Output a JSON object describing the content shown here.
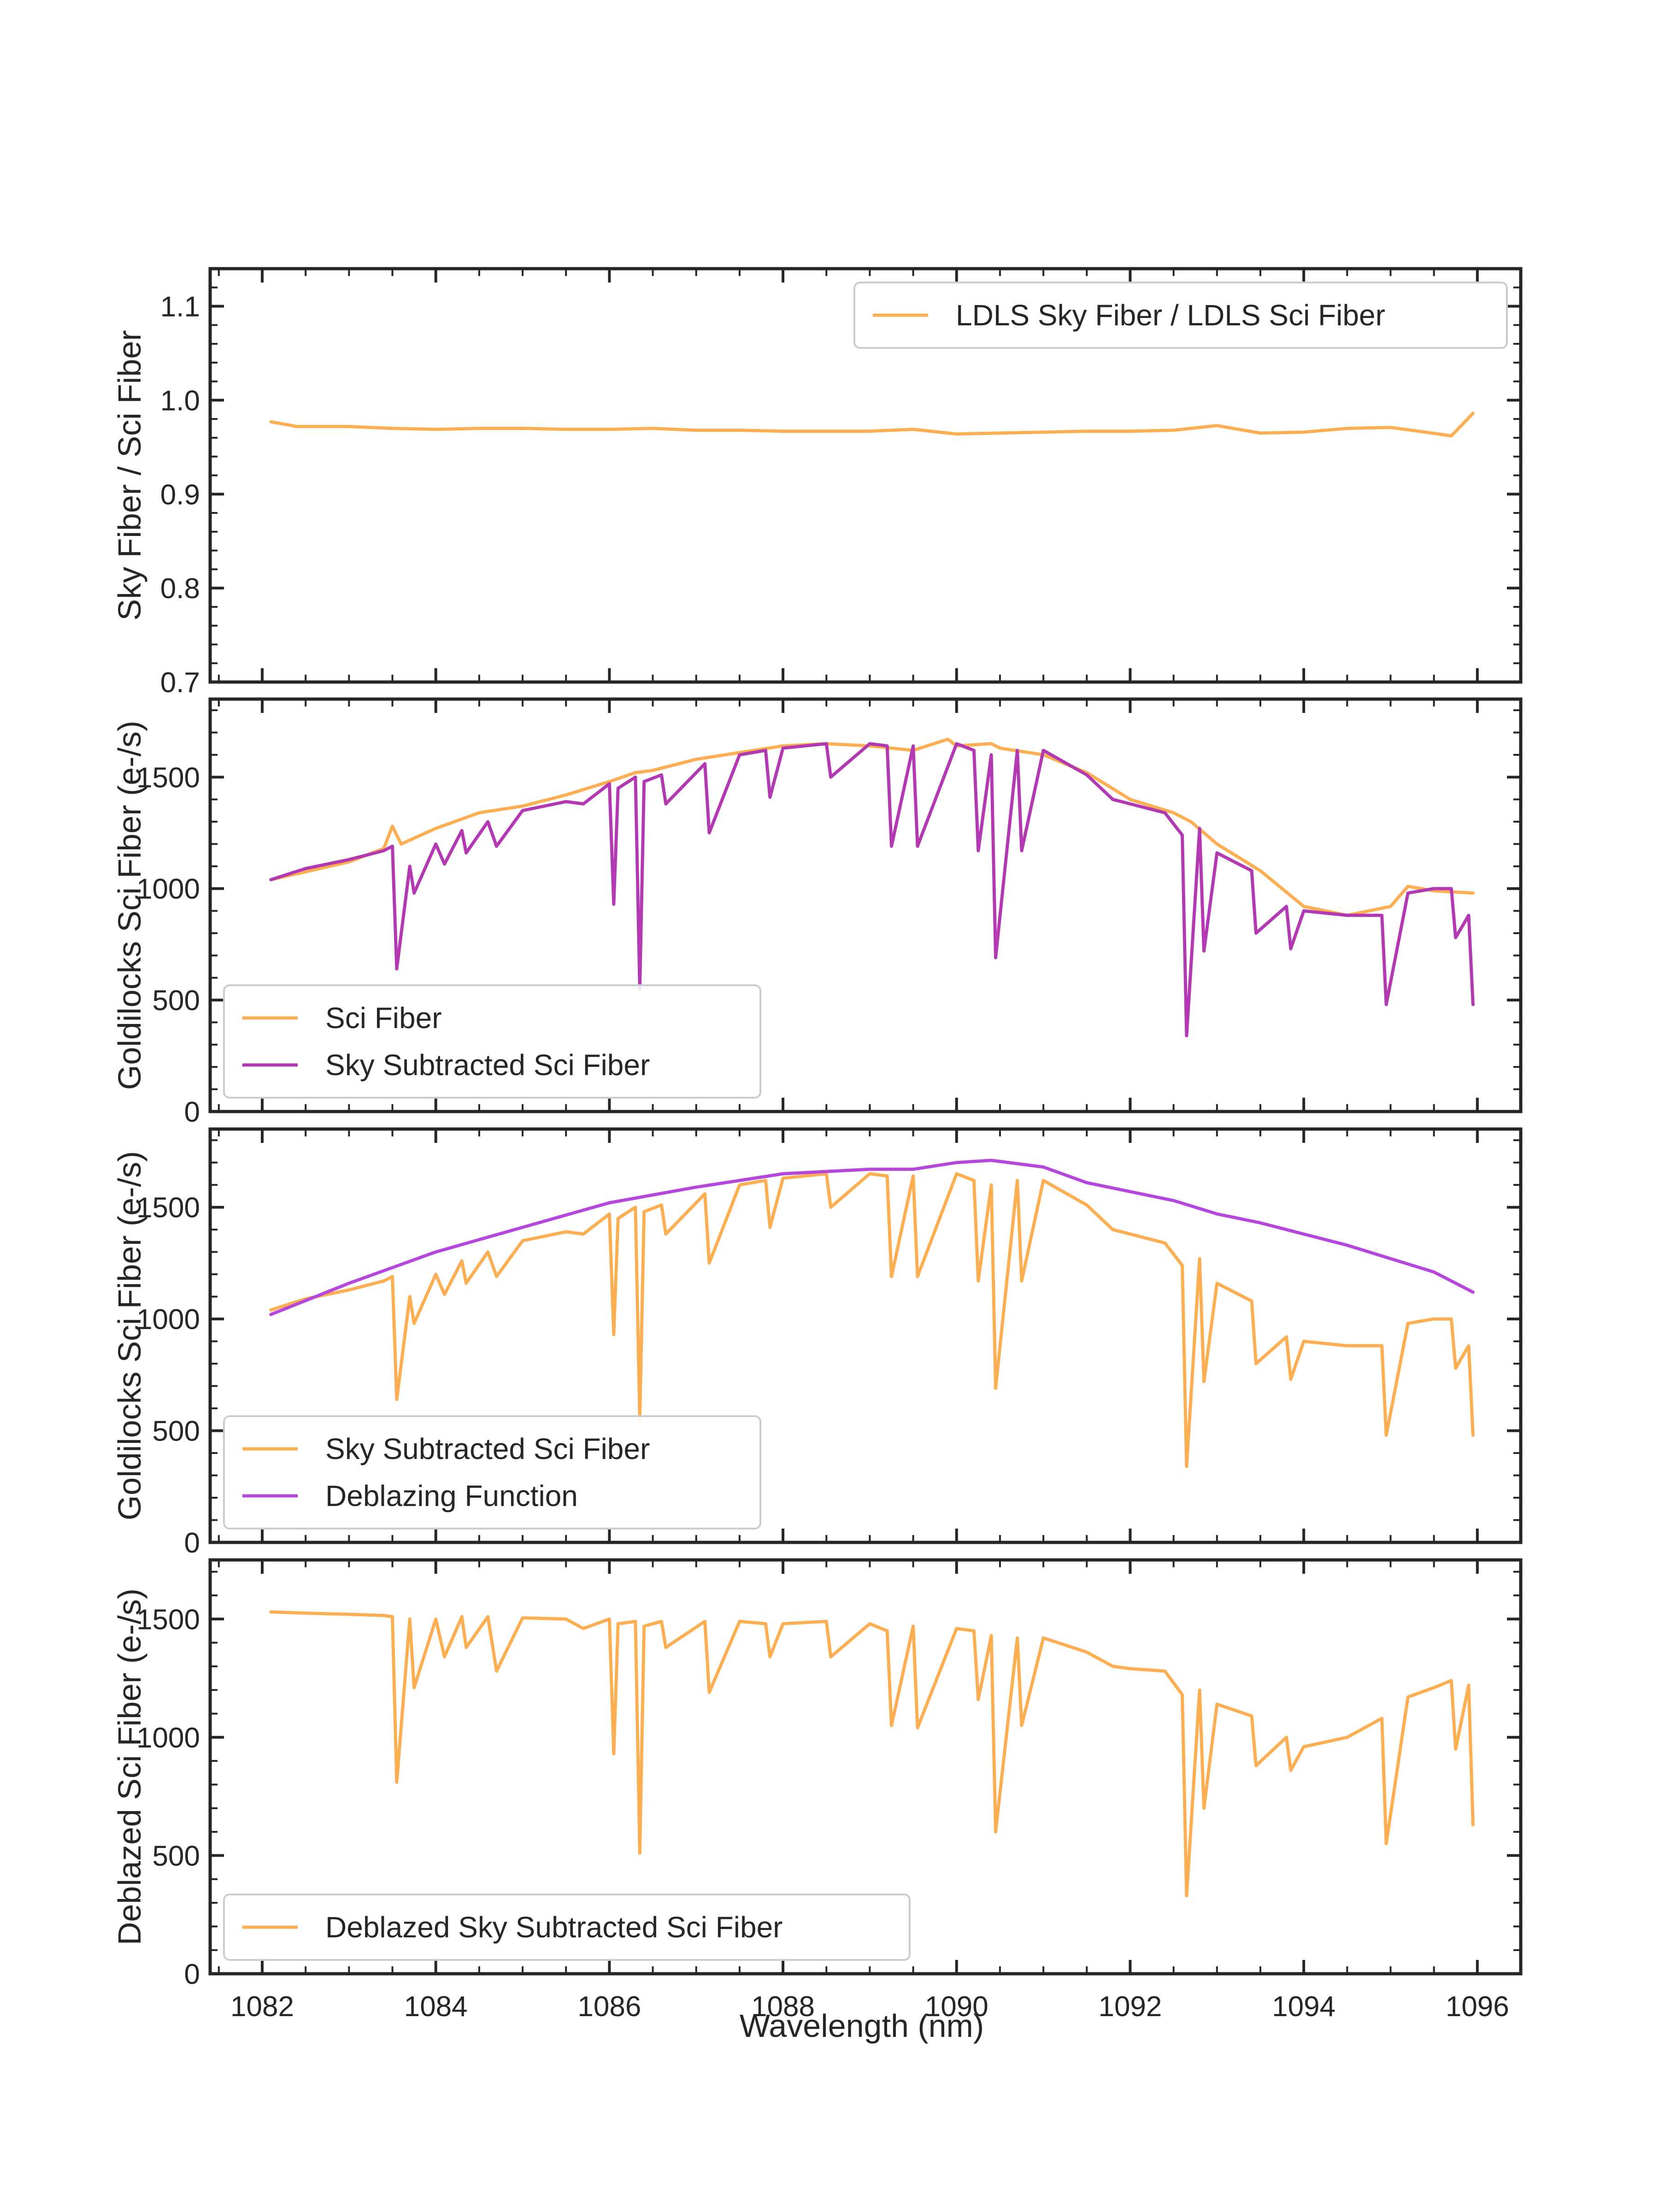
{
  "colors": {
    "orange": "#fbae52",
    "purple_panel2": "#b339b3",
    "purple_panel3": "#b547dc",
    "axis": "#262626",
    "legend_border": "#cccccc"
  },
  "chart_data": [
    {
      "type": "line",
      "panel": "top",
      "xlabel": "",
      "ylabel": "Sky Fiber / Sci Fiber",
      "xlim": [
        1081.4,
        1096.5
      ],
      "ylim": [
        0.7,
        1.14
      ],
      "yticks": [
        "0.7",
        "0.8",
        "0.9",
        "1.0",
        "1.1"
      ],
      "ytick_values": [
        0.7,
        0.8,
        0.9,
        1.0,
        1.1
      ],
      "legend_position": "upper-right",
      "series": [
        {
          "name": "LDLS Sky Fiber / LDLS Sci Fiber",
          "color": "#fbae52",
          "x": [
            1082.1,
            1082.4,
            1083.0,
            1083.5,
            1084.0,
            1084.5,
            1085.0,
            1085.5,
            1086.0,
            1086.5,
            1087.0,
            1087.5,
            1088.0,
            1088.5,
            1089.0,
            1089.5,
            1090.0,
            1090.5,
            1091.0,
            1091.5,
            1092.0,
            1092.5,
            1093.0,
            1093.5,
            1094.0,
            1094.5,
            1095.0,
            1095.4,
            1095.7,
            1095.95
          ],
          "y": [
            0.977,
            0.972,
            0.972,
            0.97,
            0.969,
            0.97,
            0.97,
            0.969,
            0.969,
            0.97,
            0.968,
            0.968,
            0.967,
            0.967,
            0.967,
            0.969,
            0.964,
            0.965,
            0.966,
            0.967,
            0.967,
            0.968,
            0.973,
            0.965,
            0.966,
            0.97,
            0.971,
            0.966,
            0.962,
            0.986
          ]
        }
      ]
    },
    {
      "type": "line",
      "panel": "second",
      "xlabel": "",
      "ylabel": "Goldilocks Sci Fiber (e-/s)",
      "xlim": [
        1081.4,
        1096.5
      ],
      "ylim": [
        0,
        1850
      ],
      "yticks": [
        "0",
        "500",
        "1000",
        "1500"
      ],
      "ytick_values": [
        0,
        500,
        1000,
        1500
      ],
      "legend_position": "lower-left",
      "series": [
        {
          "name": "Sci Fiber",
          "color": "#fbae52",
          "x": [
            1082.1,
            1083.0,
            1083.4,
            1083.5,
            1083.6,
            1084.0,
            1084.5,
            1085.0,
            1085.5,
            1086.0,
            1086.3,
            1086.5,
            1087.0,
            1087.5,
            1088.0,
            1088.5,
            1089.0,
            1089.5,
            1089.9,
            1090.0,
            1090.4,
            1090.5,
            1091.0,
            1091.5,
            1092.0,
            1092.5,
            1092.7,
            1093.0,
            1093.5,
            1094.0,
            1094.5,
            1095.0,
            1095.2,
            1095.5,
            1095.95
          ],
          "y": [
            1040,
            1120,
            1180,
            1280,
            1200,
            1270,
            1340,
            1370,
            1420,
            1480,
            1520,
            1530,
            1580,
            1610,
            1640,
            1650,
            1640,
            1620,
            1670,
            1640,
            1650,
            1630,
            1600,
            1520,
            1400,
            1340,
            1300,
            1200,
            1080,
            920,
            880,
            920,
            1010,
            990,
            980
          ]
        },
        {
          "name": "Sky Subtracted Sci Fiber",
          "color": "#b339b3",
          "x": [
            1082.1,
            1082.5,
            1083.0,
            1083.4,
            1083.5,
            1083.55,
            1083.7,
            1083.75,
            1084.0,
            1084.1,
            1084.3,
            1084.35,
            1084.6,
            1084.7,
            1085.0,
            1085.5,
            1085.7,
            1086.0,
            1086.05,
            1086.1,
            1086.3,
            1086.35,
            1086.4,
            1086.6,
            1086.65,
            1087.1,
            1087.15,
            1087.5,
            1087.8,
            1087.85,
            1088.0,
            1088.5,
            1088.55,
            1089.0,
            1089.2,
            1089.25,
            1089.5,
            1089.55,
            1090.0,
            1090.2,
            1090.25,
            1090.4,
            1090.45,
            1090.7,
            1090.75,
            1091.0,
            1091.5,
            1091.8,
            1092.0,
            1092.4,
            1092.6,
            1092.65,
            1092.8,
            1092.85,
            1093.0,
            1093.4,
            1093.45,
            1093.8,
            1093.85,
            1094.0,
            1094.5,
            1094.9,
            1094.95,
            1095.2,
            1095.5,
            1095.7,
            1095.75,
            1095.9,
            1095.95
          ],
          "y": [
            1040,
            1090,
            1130,
            1170,
            1190,
            640,
            1100,
            980,
            1200,
            1110,
            1260,
            1160,
            1300,
            1190,
            1350,
            1390,
            1380,
            1470,
            930,
            1450,
            1500,
            550,
            1480,
            1510,
            1380,
            1560,
            1250,
            1600,
            1620,
            1410,
            1630,
            1650,
            1500,
            1650,
            1640,
            1190,
            1640,
            1190,
            1650,
            1620,
            1170,
            1600,
            690,
            1620,
            1170,
            1620,
            1510,
            1400,
            1380,
            1340,
            1240,
            340,
            1270,
            720,
            1160,
            1080,
            800,
            920,
            730,
            900,
            880,
            880,
            480,
            980,
            1000,
            1000,
            780,
            880,
            480
          ]
        }
      ]
    },
    {
      "type": "line",
      "panel": "third",
      "xlabel": "",
      "ylabel": "Goldilocks Sci Fiber (e-/s)",
      "xlim": [
        1081.4,
        1096.5
      ],
      "ylim": [
        0,
        1850
      ],
      "yticks": [
        "0",
        "500",
        "1000",
        "1500"
      ],
      "ytick_values": [
        0,
        500,
        1000,
        1500
      ],
      "legend_position": "lower-left",
      "series": [
        {
          "name": "Sky Subtracted Sci Fiber",
          "color": "#fbae52",
          "x": [
            1082.1,
            1082.5,
            1083.0,
            1083.4,
            1083.5,
            1083.55,
            1083.7,
            1083.75,
            1084.0,
            1084.1,
            1084.3,
            1084.35,
            1084.6,
            1084.7,
            1085.0,
            1085.5,
            1085.7,
            1086.0,
            1086.05,
            1086.1,
            1086.3,
            1086.35,
            1086.4,
            1086.6,
            1086.65,
            1087.1,
            1087.15,
            1087.5,
            1087.8,
            1087.85,
            1088.0,
            1088.5,
            1088.55,
            1089.0,
            1089.2,
            1089.25,
            1089.5,
            1089.55,
            1090.0,
            1090.2,
            1090.25,
            1090.4,
            1090.45,
            1090.7,
            1090.75,
            1091.0,
            1091.5,
            1091.8,
            1092.0,
            1092.4,
            1092.6,
            1092.65,
            1092.8,
            1092.85,
            1093.0,
            1093.4,
            1093.45,
            1093.8,
            1093.85,
            1094.0,
            1094.5,
            1094.9,
            1094.95,
            1095.2,
            1095.5,
            1095.7,
            1095.75,
            1095.9,
            1095.95
          ],
          "y": [
            1040,
            1090,
            1130,
            1170,
            1190,
            640,
            1100,
            980,
            1200,
            1110,
            1260,
            1160,
            1300,
            1190,
            1350,
            1390,
            1380,
            1470,
            930,
            1450,
            1500,
            550,
            1480,
            1510,
            1380,
            1560,
            1250,
            1600,
            1620,
            1410,
            1630,
            1650,
            1500,
            1650,
            1640,
            1190,
            1640,
            1190,
            1650,
            1620,
            1170,
            1600,
            690,
            1620,
            1170,
            1620,
            1510,
            1400,
            1380,
            1340,
            1240,
            340,
            1270,
            720,
            1160,
            1080,
            800,
            920,
            730,
            900,
            880,
            880,
            480,
            980,
            1000,
            1000,
            780,
            880,
            480
          ]
        },
        {
          "name": "Deblazing Function",
          "color": "#b547dc",
          "x": [
            1082.1,
            1083.0,
            1084.0,
            1085.0,
            1086.0,
            1087.0,
            1088.0,
            1089.0,
            1089.5,
            1090.0,
            1090.4,
            1091.0,
            1091.5,
            1092.0,
            1092.5,
            1093.0,
            1093.5,
            1094.0,
            1094.5,
            1095.0,
            1095.5,
            1095.95
          ],
          "y": [
            1020,
            1160,
            1300,
            1410,
            1520,
            1590,
            1650,
            1670,
            1670,
            1700,
            1710,
            1680,
            1610,
            1570,
            1530,
            1470,
            1430,
            1380,
            1330,
            1270,
            1210,
            1120
          ]
        }
      ]
    },
    {
      "type": "line",
      "panel": "bottom",
      "xlabel": "Wavelength (nm)",
      "ylabel": "Deblazed Sci Fiber (e-/s)",
      "xlim": [
        1081.4,
        1096.5
      ],
      "ylim": [
        0,
        1750
      ],
      "xticks": [
        "1082",
        "1084",
        "1086",
        "1088",
        "1090",
        "1092",
        "1094",
        "1096"
      ],
      "xtick_values": [
        1082,
        1084,
        1086,
        1088,
        1090,
        1092,
        1094,
        1096
      ],
      "yticks": [
        "0",
        "500",
        "1000",
        "1500"
      ],
      "ytick_values": [
        0,
        500,
        1000,
        1500
      ],
      "legend_position": "lower-left",
      "series": [
        {
          "name": "Deblazed Sky Subtracted Sci Fiber",
          "color": "#fbae52",
          "x": [
            1082.1,
            1082.5,
            1083.0,
            1083.4,
            1083.5,
            1083.55,
            1083.7,
            1083.75,
            1084.0,
            1084.1,
            1084.3,
            1084.35,
            1084.6,
            1084.7,
            1085.0,
            1085.5,
            1085.7,
            1086.0,
            1086.05,
            1086.1,
            1086.3,
            1086.35,
            1086.4,
            1086.6,
            1086.65,
            1087.1,
            1087.15,
            1087.5,
            1087.8,
            1087.85,
            1088.0,
            1088.5,
            1088.55,
            1089.0,
            1089.2,
            1089.25,
            1089.5,
            1089.55,
            1090.0,
            1090.2,
            1090.25,
            1090.4,
            1090.45,
            1090.7,
            1090.75,
            1091.0,
            1091.5,
            1091.8,
            1092.0,
            1092.4,
            1092.6,
            1092.65,
            1092.8,
            1092.85,
            1093.0,
            1093.4,
            1093.45,
            1093.8,
            1093.85,
            1094.0,
            1094.5,
            1094.9,
            1094.95,
            1095.2,
            1095.5,
            1095.7,
            1095.75,
            1095.9,
            1095.95
          ],
          "y": [
            1530,
            1525,
            1520,
            1515,
            1510,
            810,
            1500,
            1210,
            1500,
            1340,
            1510,
            1380,
            1510,
            1280,
            1505,
            1500,
            1460,
            1500,
            930,
            1480,
            1490,
            510,
            1470,
            1490,
            1380,
            1490,
            1190,
            1490,
            1480,
            1340,
            1480,
            1490,
            1340,
            1480,
            1450,
            1050,
            1470,
            1040,
            1460,
            1450,
            1160,
            1430,
            600,
            1420,
            1050,
            1420,
            1360,
            1300,
            1290,
            1280,
            1180,
            330,
            1200,
            700,
            1140,
            1090,
            880,
            1000,
            860,
            960,
            1000,
            1080,
            550,
            1170,
            1210,
            1240,
            950,
            1220,
            630
          ]
        }
      ]
    }
  ]
}
